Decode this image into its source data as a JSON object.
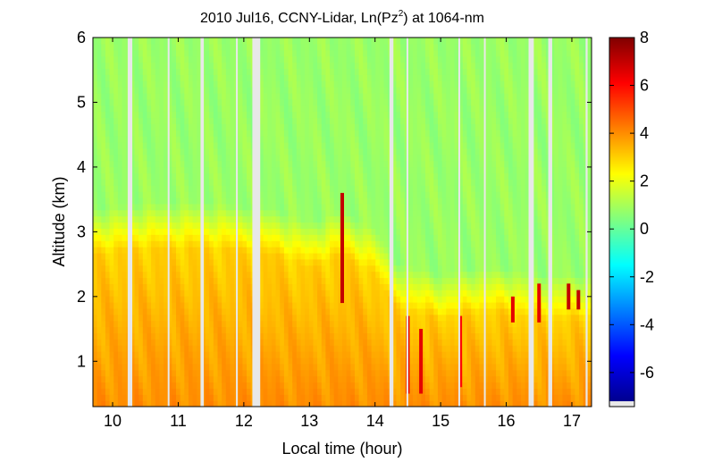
{
  "chart_data": {
    "type": "heatmap",
    "title_main": "2010 Jul16, CCNY-Lidar, Ln(Pz",
    "title_sup": "2",
    "title_end": ") at 1064-nm",
    "xlabel": "Local time (hour)",
    "ylabel": "Altitude (km)",
    "xlim": [
      9.7,
      17.3
    ],
    "ylim": [
      0.3,
      6.0
    ],
    "xticks": [
      10,
      11,
      12,
      13,
      14,
      15,
      16,
      17
    ],
    "yticks": [
      1,
      2,
      3,
      4,
      5,
      6
    ],
    "colorbar": {
      "range": [
        -7.2,
        8
      ],
      "ticks": [
        8,
        6,
        4,
        2,
        0,
        -2,
        -4,
        -6
      ],
      "colormap": "jet"
    },
    "data_gaps_hours": [
      [
        10.23,
        10.3
      ],
      [
        10.84,
        10.86
      ],
      [
        11.34,
        11.39
      ],
      [
        11.88,
        11.9
      ],
      [
        12.13,
        12.25
      ],
      [
        14.22,
        14.28
      ],
      [
        14.48,
        14.49
      ],
      [
        15.27,
        15.29
      ],
      [
        15.66,
        15.68
      ],
      [
        16.34,
        16.42
      ],
      [
        16.64,
        16.7
      ],
      [
        17.21,
        17.24
      ]
    ],
    "profile": {
      "boundary_layer_top_km": [
        {
          "x": 9.7,
          "y": 3.0
        },
        {
          "x": 10.5,
          "y": 3.1
        },
        {
          "x": 11.5,
          "y": 3.1
        },
        {
          "x": 12.5,
          "y": 3.0
        },
        {
          "x": 13.0,
          "y": 2.8
        },
        {
          "x": 13.5,
          "y": 3.0
        },
        {
          "x": 14.0,
          "y": 2.7
        },
        {
          "x": 14.3,
          "y": 2.2
        },
        {
          "x": 15.0,
          "y": 2.0
        },
        {
          "x": 15.5,
          "y": 2.1
        },
        {
          "x": 16.0,
          "y": 2.1
        },
        {
          "x": 16.5,
          "y": 2.0
        },
        {
          "x": 17.3,
          "y": 2.0
        }
      ],
      "free_troposphere_value": 0.8,
      "boundary_layer_value": 3.0,
      "surface_value": 4.0
    },
    "features": [
      {
        "x": 13.5,
        "y0": 1.9,
        "y1": 3.6,
        "value": 7.0
      },
      {
        "x": 14.5,
        "y0": 0.5,
        "y1": 1.7,
        "value": 6.5
      },
      {
        "x": 14.7,
        "y0": 0.5,
        "y1": 1.5,
        "value": 6.5
      },
      {
        "x": 15.3,
        "y0": 0.6,
        "y1": 1.7,
        "value": 6.0
      },
      {
        "x": 16.1,
        "y0": 1.6,
        "y1": 2.0,
        "value": 6.5
      },
      {
        "x": 16.5,
        "y0": 1.6,
        "y1": 2.2,
        "value": 6.5
      },
      {
        "x": 16.95,
        "y0": 1.8,
        "y1": 2.2,
        "value": 7.0
      },
      {
        "x": 17.1,
        "y0": 1.8,
        "y1": 2.1,
        "value": 7.0
      }
    ]
  }
}
